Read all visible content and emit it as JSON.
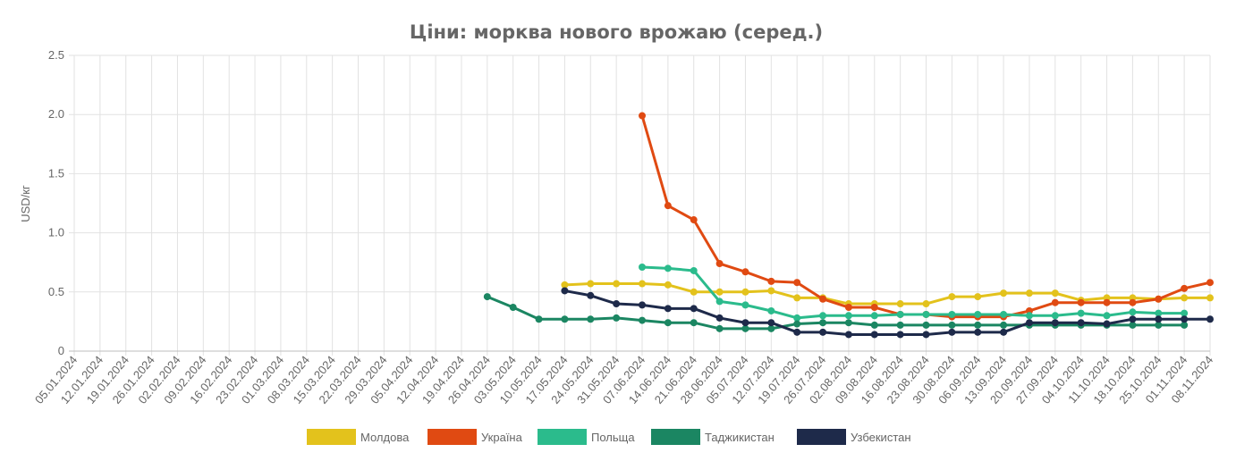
{
  "chart_data": {
    "type": "line",
    "title": "Ціни: морква нового врожаю (серед.)",
    "ylabel": "USD/кг",
    "xlabel": "",
    "ylim": [
      0,
      2.5
    ],
    "yticks": [
      "0",
      "0.5",
      "1.0",
      "1.5",
      "2.0",
      "2.5"
    ],
    "grid": true,
    "legend_position": "bottom",
    "categories": [
      "05.01.2024",
      "12.01.2024",
      "19.01.2024",
      "26.01.2024",
      "02.02.2024",
      "09.02.2024",
      "16.02.2024",
      "23.02.2024",
      "01.03.2024",
      "08.03.2024",
      "15.03.2024",
      "22.03.2024",
      "29.03.2024",
      "05.04.2024",
      "12.04.2024",
      "19.04.2024",
      "26.04.2024",
      "03.05.2024",
      "10.05.2024",
      "17.05.2024",
      "24.05.2024",
      "31.05.2024",
      "07.06.2024",
      "14.06.2024",
      "21.06.2024",
      "28.06.2024",
      "05.07.2024",
      "12.07.2024",
      "19.07.2024",
      "26.07.2024",
      "02.08.2024",
      "09.08.2024",
      "16.08.2024",
      "23.08.2024",
      "30.08.2024",
      "06.09.2024",
      "13.09.2024",
      "20.09.2024",
      "27.09.2024",
      "04.10.2024",
      "11.10.2024",
      "18.10.2024",
      "25.10.2024",
      "01.11.2024",
      "08.11.2024"
    ],
    "series": [
      {
        "name": "Молдова",
        "color": "#e3c21c",
        "values": [
          null,
          null,
          null,
          null,
          null,
          null,
          null,
          null,
          null,
          null,
          null,
          null,
          null,
          null,
          null,
          null,
          null,
          null,
          null,
          0.56,
          0.57,
          0.57,
          0.57,
          0.56,
          0.5,
          0.5,
          0.5,
          0.51,
          0.45,
          0.45,
          0.4,
          0.4,
          0.4,
          0.4,
          0.46,
          0.46,
          0.49,
          0.49,
          0.49,
          0.43,
          0.45,
          0.45,
          0.44,
          0.45,
          0.45
        ]
      },
      {
        "name": "Україна",
        "color": "#e04a12",
        "values": [
          null,
          null,
          null,
          null,
          null,
          null,
          null,
          null,
          null,
          null,
          null,
          null,
          null,
          null,
          null,
          null,
          null,
          null,
          null,
          null,
          null,
          null,
          1.99,
          1.23,
          1.11,
          0.74,
          0.67,
          0.59,
          0.58,
          0.44,
          0.37,
          0.37,
          0.31,
          0.31,
          0.29,
          0.29,
          0.29,
          0.34,
          0.41,
          0.41,
          0.41,
          0.41,
          0.44,
          0.53,
          0.58
        ]
      },
      {
        "name": "Польща",
        "color": "#2bbb8c",
        "values": [
          null,
          null,
          null,
          null,
          null,
          null,
          null,
          null,
          null,
          null,
          null,
          null,
          null,
          null,
          null,
          null,
          null,
          null,
          null,
          null,
          null,
          null,
          0.71,
          0.7,
          0.68,
          0.42,
          0.39,
          0.34,
          0.28,
          0.3,
          0.3,
          0.3,
          0.31,
          0.31,
          0.31,
          0.31,
          0.31,
          0.3,
          0.3,
          0.32,
          0.3,
          0.33,
          0.32,
          0.32,
          null
        ]
      },
      {
        "name": "Таджикистан",
        "color": "#1b8662",
        "values": [
          null,
          null,
          null,
          null,
          null,
          null,
          null,
          null,
          null,
          null,
          null,
          null,
          null,
          null,
          null,
          null,
          0.46,
          0.37,
          0.27,
          0.27,
          0.27,
          0.28,
          0.26,
          0.24,
          0.24,
          0.19,
          0.19,
          0.19,
          0.23,
          0.24,
          0.24,
          0.22,
          0.22,
          0.22,
          0.22,
          0.22,
          0.22,
          0.22,
          0.22,
          0.22,
          0.22,
          0.22,
          0.22,
          0.22,
          null
        ]
      },
      {
        "name": "Узбекистан",
        "color": "#1e2a4a",
        "values": [
          null,
          null,
          null,
          null,
          null,
          null,
          null,
          null,
          null,
          null,
          null,
          null,
          null,
          null,
          null,
          null,
          null,
          null,
          null,
          0.51,
          0.47,
          0.4,
          0.39,
          0.36,
          0.36,
          0.28,
          0.24,
          0.24,
          0.16,
          0.16,
          0.14,
          0.14,
          0.14,
          0.14,
          0.16,
          0.16,
          0.16,
          0.24,
          0.24,
          0.24,
          0.23,
          0.27,
          0.27,
          0.27,
          0.27
        ]
      }
    ]
  }
}
